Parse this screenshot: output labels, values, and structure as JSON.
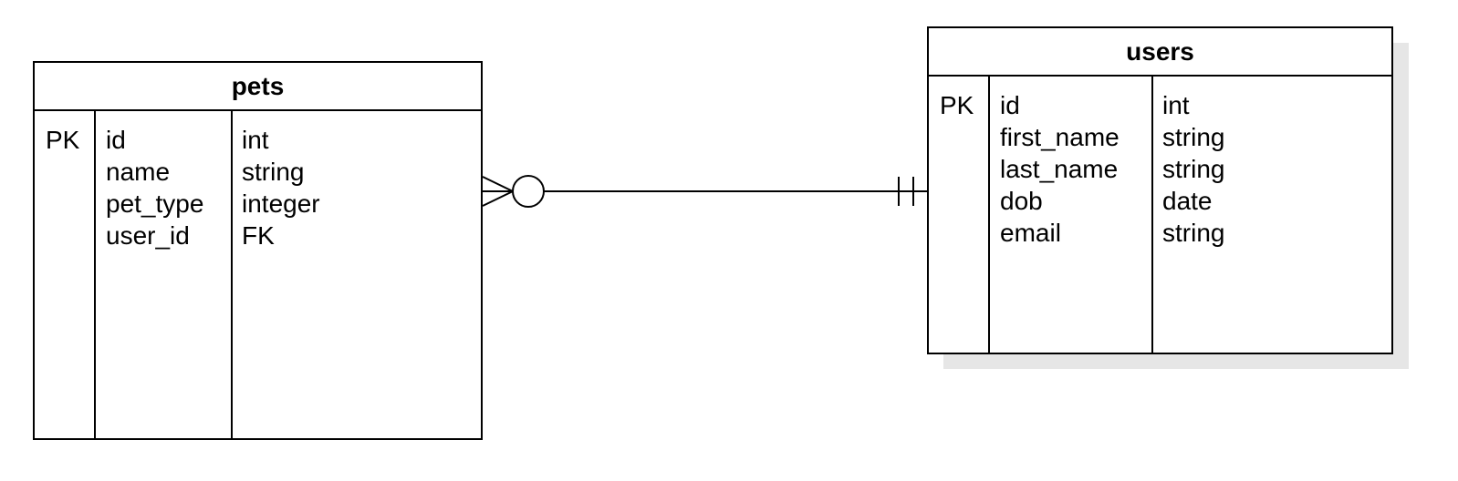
{
  "pets": {
    "title": "pets",
    "rows": [
      {
        "key": "PK",
        "name": "id",
        "type": "int"
      },
      {
        "key": "",
        "name": "name",
        "type": "string"
      },
      {
        "key": "",
        "name": "pet_type",
        "type": "integer"
      },
      {
        "key": "",
        "name": "user_id",
        "type": "FK"
      }
    ]
  },
  "users": {
    "title": "users",
    "rows": [
      {
        "key": "PK",
        "name": "id",
        "type": "int"
      },
      {
        "key": "",
        "name": "first_name",
        "type": "string"
      },
      {
        "key": "",
        "name": "last_name",
        "type": "string"
      },
      {
        "key": "",
        "name": "dob",
        "type": "date"
      },
      {
        "key": "",
        "name": "email",
        "type": "string"
      }
    ]
  },
  "relationship": {
    "pets_end": "zero-or-many",
    "users_end": "one-and-only-one"
  },
  "colors": {
    "line": "#000000",
    "shadow": "#e6e6e6",
    "background": "#ffffff"
  }
}
